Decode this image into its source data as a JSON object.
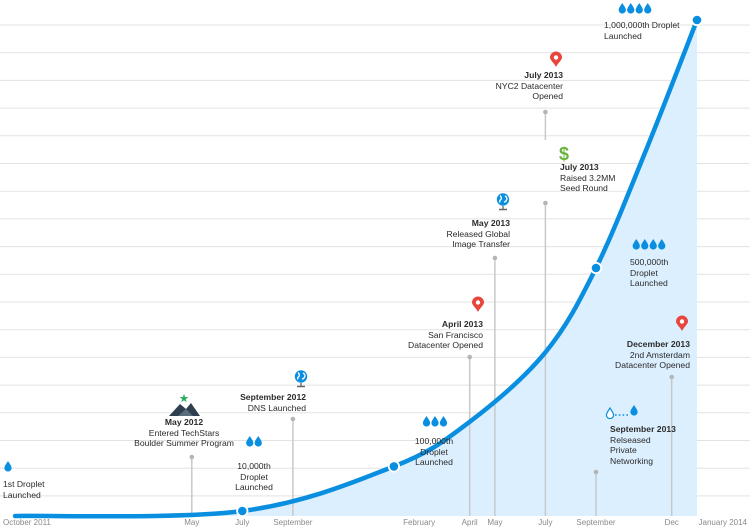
{
  "colors": {
    "accent": "#0a8fe0",
    "area": "#dcefff",
    "grid": "#e3e3e3",
    "pin": "#e8453c",
    "money": "#6ab43c",
    "stem": "#c8c8c8",
    "text": "#2b2b2b",
    "tick": "#8a8a8a"
  },
  "chart_data": {
    "type": "area",
    "title": "",
    "xlabel": "",
    "ylabel": "",
    "x_axis": {
      "start": "2011-10",
      "end": "2014-01"
    },
    "ticks": [
      {
        "date": "2011-10",
        "label": "October 2011"
      },
      {
        "date": "2012-05",
        "label": "May"
      },
      {
        "date": "2012-07",
        "label": "July"
      },
      {
        "date": "2012-09",
        "label": "September"
      },
      {
        "date": "2013-02",
        "label": "February"
      },
      {
        "date": "2013-04",
        "label": "April"
      },
      {
        "date": "2013-05",
        "label": "May"
      },
      {
        "date": "2013-07",
        "label": "July"
      },
      {
        "date": "2013-09",
        "label": "September"
      },
      {
        "date": "2013-12",
        "label": "Dec"
      },
      {
        "date": "2014-01",
        "label": "January 2014"
      }
    ],
    "series": [
      {
        "values": [
          {
            "date": "2011-10",
            "droplets": 0
          },
          {
            "date": "2012-07",
            "droplets": 10000
          },
          {
            "date": "2013-01",
            "droplets": 100000
          },
          {
            "date": "2013-04",
            "droplets": 190000
          },
          {
            "date": "2013-07",
            "droplets": 330000
          },
          {
            "date": "2013-09",
            "droplets": 500000
          },
          {
            "date": "2013-11",
            "droplets": 740000
          },
          {
            "date": "2014-01",
            "droplets": 1000000
          }
        ]
      }
    ],
    "milestones": [
      {
        "date": "2011-10",
        "droplets": 0,
        "marker": false,
        "icon": "droplet-icon",
        "drops": 1,
        "title": "",
        "lines": [
          "1st Droplet",
          "Launched"
        ]
      },
      {
        "date": "2012-05",
        "icon": "techstars-logo",
        "title": "May 2012",
        "lines": [
          "Entered TechStars",
          "Boulder Summer Program"
        ]
      },
      {
        "date": "2012-07",
        "droplets": 10000,
        "marker": true,
        "icon": "droplet-icon",
        "drops": 2,
        "title": "",
        "lines": [
          "10,000th",
          "Droplet",
          "Launched"
        ]
      },
      {
        "date": "2012-09",
        "icon": "globe-icon",
        "title": "September 2012",
        "lines": [
          "DNS Launched"
        ]
      },
      {
        "date": "2013-01",
        "droplets": 100000,
        "marker": true,
        "icon": "droplet-icon",
        "drops": 3,
        "title": "",
        "lines": [
          "100,000th",
          "Droplet",
          "Launched"
        ]
      },
      {
        "date": "2013-04",
        "icon": "map-pin-icon",
        "title": "April 2013",
        "lines": [
          "San Francisco",
          "Datacenter Opened"
        ]
      },
      {
        "date": "2013-05",
        "icon": "globe-icon",
        "title": "May 2013",
        "lines": [
          "Released Global",
          "Image Transfer"
        ]
      },
      {
        "date": "2013-07",
        "icon": "dollar-icon",
        "title": "July 2013",
        "lines": [
          "Raised 3.2MM",
          "Seed Round"
        ]
      },
      {
        "date": "2013-07",
        "icon": "map-pin-icon",
        "title": "July 2013",
        "lines": [
          "NYC2 Datacenter",
          "Opened"
        ]
      },
      {
        "date": "2013-09",
        "droplets": 500000,
        "marker": true,
        "icon": "droplet-icon",
        "drops": 4,
        "title": "",
        "lines": [
          "500,000th",
          "Droplet",
          "Launched"
        ]
      },
      {
        "date": "2013-09",
        "icon": "network-icon",
        "title": "September 2013",
        "lines": [
          "Relseased",
          "Private",
          "Networking"
        ]
      },
      {
        "date": "2013-12",
        "icon": "map-pin-icon",
        "title": "December 2013",
        "lines": [
          "2nd Amsterdam",
          "Datacenter Opened"
        ]
      },
      {
        "date": "2014-01",
        "droplets": 1000000,
        "marker": true,
        "icon": "droplet-icon",
        "drops": 4,
        "title": "",
        "lines": [
          "1,000,000th Droplet",
          "Launched"
        ]
      }
    ]
  }
}
